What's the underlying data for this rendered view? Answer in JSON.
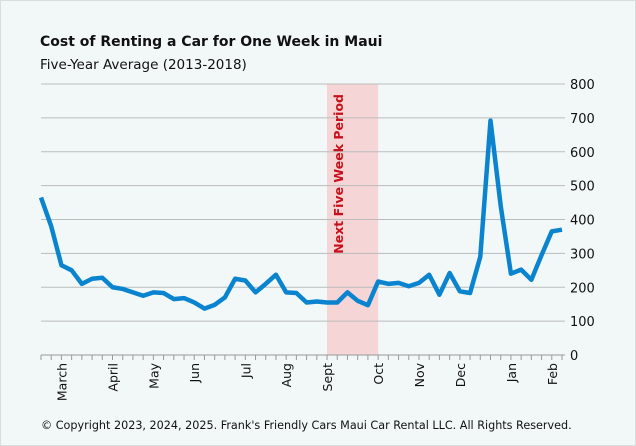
{
  "chart_data": {
    "type": "line",
    "title": "Cost of Renting a Car for One Week in Maui",
    "subtitle": "Five-Year Average (2013-2018)",
    "ylim": [
      0,
      800
    ],
    "yticks": [
      0,
      100,
      200,
      300,
      400,
      500,
      600,
      700,
      800
    ],
    "y_axis_side": "right",
    "grid": "horizontal",
    "categories": [
      "",
      "",
      "March",
      "",
      "",
      "",
      "",
      "April",
      "",
      "",
      "",
      "May",
      "",
      "",
      "",
      "Jun",
      "",
      "",
      "",
      "",
      "Jul",
      "",
      "",
      "",
      "Aug",
      "",
      "",
      "",
      "Sept",
      "",
      "",
      "",
      "",
      "Oct",
      "",
      "",
      "",
      "Nov",
      "",
      "",
      "",
      "Dec",
      "",
      "",
      "",
      "",
      "Jan",
      "",
      "",
      "",
      "Feb",
      ""
    ],
    "values": [
      465,
      380,
      265,
      250,
      210,
      225,
      228,
      200,
      195,
      185,
      175,
      185,
      183,
      165,
      168,
      155,
      137,
      148,
      170,
      225,
      220,
      185,
      210,
      237,
      185,
      183,
      155,
      158,
      155,
      155,
      185,
      160,
      147,
      217,
      210,
      213,
      203,
      213,
      237,
      178,
      242,
      188,
      183,
      290,
      692,
      440,
      240,
      252,
      222,
      295,
      365,
      370
    ],
    "line_color": "#0a84cf",
    "highlight": {
      "label": "Next Five Week Period",
      "from": "Sept",
      "to": "Oct",
      "color": "#f5d5d6",
      "label_color": "#c8101a"
    }
  },
  "footer": {
    "copyright": "© Copyright 2023, 2024, 2025. Frank's Friendly Cars Maui Car Rental LLC. All Rights Reserved."
  }
}
